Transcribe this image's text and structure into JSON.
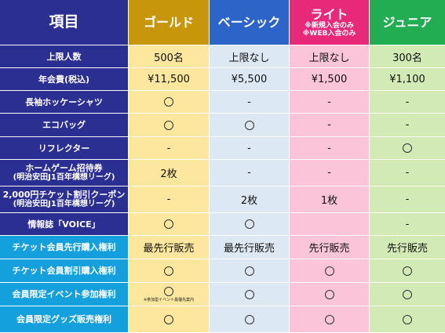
{
  "header": {
    "item_label": "項目",
    "plans": [
      {
        "name": "ゴールド",
        "note": "",
        "color": "#c8960a"
      },
      {
        "name": "ベーシック",
        "note": "",
        "color": "#2c64c8"
      },
      {
        "name": "ライト",
        "note": "※新規入会のみ\n※WEB入会のみ",
        "note_line1": "※新規入会のみ",
        "note_line2": "※WEB入会のみ",
        "color": "#e8297a"
      },
      {
        "name": "ジュニア",
        "note": "",
        "color": "#23ad52"
      }
    ]
  },
  "rows": [
    {
      "label": "上限人数",
      "label2": "",
      "values": [
        "500名",
        "上限なし",
        "上限なし",
        "300名"
      ]
    },
    {
      "label": "年会費(税込)",
      "label2": "",
      "values": [
        "¥11,500",
        "¥5,500",
        "¥1,500",
        "¥1,100"
      ]
    },
    {
      "label": "長袖ホッケーシャツ",
      "label2": "",
      "values": [
        "◯",
        "-",
        "-",
        "-"
      ]
    },
    {
      "label": "エコバッグ",
      "label2": "",
      "values": [
        "◯",
        "◯",
        "-",
        "-"
      ]
    },
    {
      "label": "リフレクター",
      "label2": "",
      "values": [
        "-",
        "-",
        "-",
        "◯"
      ]
    },
    {
      "label": "ホームゲーム招待券",
      "label2": "(明治安田J1百年構想リーグ)",
      "values": [
        "2枚",
        "-",
        "-",
        "-"
      ]
    },
    {
      "label": "2,000円チケット割引クーポン",
      "label2": "(明治安田J1百年構想リーグ)",
      "values": [
        "-",
        "2枚",
        "1枚",
        "-"
      ]
    },
    {
      "label": "情報誌「VOICE」",
      "label2": "",
      "values": [
        "◯",
        "◯",
        "",
        "-"
      ]
    },
    {
      "label": "チケット会員先行購入権利",
      "label2": "",
      "values": [
        "最先行販売",
        "最先行販売",
        "先行販売",
        "先行販売"
      ]
    },
    {
      "label": "チケット会員割引購入権利",
      "label2": "",
      "values": [
        "◯",
        "◯",
        "◯",
        "◯"
      ]
    },
    {
      "label": "会員限定イベント参加権利",
      "label2": "",
      "values": [
        "◯",
        "◯",
        "◯",
        "◯"
      ],
      "gold_note": "※参加型イベント最優先案内"
    },
    {
      "label": "会員限定グッズ販売権利",
      "label2": "",
      "values": [
        "◯",
        "◯",
        "◯",
        "◯"
      ]
    }
  ]
}
